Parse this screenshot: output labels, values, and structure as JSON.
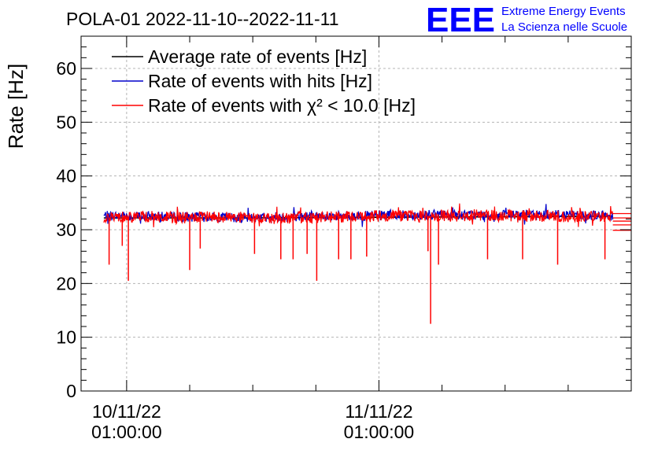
{
  "header": {
    "title": "POLA-01 2022-11-10--2022-11-11",
    "logo_text": "EEE",
    "logo_line1": "Extreme Energy Events",
    "logo_line2": "La Scienza nelle Scuole"
  },
  "colors": {
    "average": "#000000",
    "hits": "#0000cc",
    "chi2": "#ff0000",
    "logo": "#0000ff",
    "grid": "#b4b4b4"
  },
  "chart_data": {
    "type": "line",
    "title": "POLA-01 2022-11-10--2022-11-11",
    "ylabel": "Rate [Hz]",
    "xlabel": "",
    "x_type": "datetime",
    "xlim": [
      "2022-11-09 20:40:00",
      "2022-11-12 01:00:00"
    ],
    "ylim": [
      0,
      66
    ],
    "grid": true,
    "legend_position": "top-left",
    "y_ticks": [
      0,
      10,
      20,
      30,
      40,
      50,
      60
    ],
    "x_tick_labels": [
      {
        "date": "10/11/22",
        "time": "01:00:00",
        "at": "2022-11-10 01:00:00"
      },
      {
        "date": "11/11/22",
        "time": "01:00:00",
        "at": "2022-11-11 01:00:00"
      }
    ],
    "series": [
      {
        "name": "Average rate of events [Hz]",
        "color": "#000000",
        "kind": "average",
        "x": [
          "2022-11-09 22:50:00",
          "2022-11-10 11:00:00",
          "2022-11-11 23:15:00"
        ],
        "y": [
          32.2,
          32.2,
          32.5
        ]
      },
      {
        "name": "Rate of events with hits [Hz]",
        "color": "#0000cc",
        "kind": "hits",
        "x": [
          "2022-11-09 22:50:00",
          "2022-11-10 06:00:00",
          "2022-11-10 12:00:00",
          "2022-11-10 18:00:00",
          "2022-11-11 00:00:00",
          "2022-11-11 06:00:00",
          "2022-11-11 12:00:00",
          "2022-11-11 18:00:00",
          "2022-11-11 23:15:00"
        ],
        "y": [
          32.6,
          32.4,
          32.3,
          32.5,
          32.6,
          32.8,
          32.7,
          32.9,
          32.6
        ]
      },
      {
        "name": "Rate of events with χ² < 10.0 [Hz]",
        "color": "#ff0000",
        "kind": "chi2",
        "x": [
          "2022-11-09 22:50:00",
          "2022-11-10 02:00:00",
          "2022-11-10 06:00:00",
          "2022-11-10 10:00:00",
          "2022-11-10 14:00:00",
          "2022-11-10 18:00:00",
          "2022-11-10 22:00:00",
          "2022-11-11 02:00:00",
          "2022-11-11 06:00:00",
          "2022-11-11 10:00:00",
          "2022-11-11 14:00:00",
          "2022-11-11 18:00:00",
          "2022-11-11 23:15:00"
        ],
        "y": [
          32.3,
          32.5,
          32.2,
          32.4,
          32.1,
          32.3,
          32.4,
          32.6,
          32.5,
          32.7,
          32.6,
          32.5,
          32.4
        ],
        "dips": [
          {
            "x": "2022-11-09 23:20:00",
            "y": 23.5
          },
          {
            "x": "2022-11-10 00:35:00",
            "y": 27.0
          },
          {
            "x": "2022-11-10 01:10:00",
            "y": 20.5
          },
          {
            "x": "2022-11-10 07:00:00",
            "y": 22.5
          },
          {
            "x": "2022-11-10 08:00:00",
            "y": 26.5
          },
          {
            "x": "2022-11-10 13:10:00",
            "y": 25.5
          },
          {
            "x": "2022-11-10 15:40:00",
            "y": 24.5
          },
          {
            "x": "2022-11-10 16:50:00",
            "y": 24.5
          },
          {
            "x": "2022-11-10 18:10:00",
            "y": 25.5
          },
          {
            "x": "2022-11-10 19:05:00",
            "y": 20.5
          },
          {
            "x": "2022-11-10 21:10:00",
            "y": 24.5
          },
          {
            "x": "2022-11-10 22:20:00",
            "y": 24.5
          },
          {
            "x": "2022-11-10 23:50:00",
            "y": 25.0
          },
          {
            "x": "2022-11-11 05:40:00",
            "y": 26.0
          },
          {
            "x": "2022-11-11 05:55:00",
            "y": 12.5
          },
          {
            "x": "2022-11-11 06:40:00",
            "y": 23.5
          },
          {
            "x": "2022-11-11 11:20:00",
            "y": 24.5
          },
          {
            "x": "2022-11-11 14:40:00",
            "y": 24.5
          },
          {
            "x": "2022-11-11 18:00:00",
            "y": 23.5
          },
          {
            "x": "2022-11-11 22:30:00",
            "y": 24.5
          }
        ],
        "trailing_levels": [
          33.0,
          32.2,
          31.6,
          30.9,
          29.9
        ]
      }
    ]
  }
}
